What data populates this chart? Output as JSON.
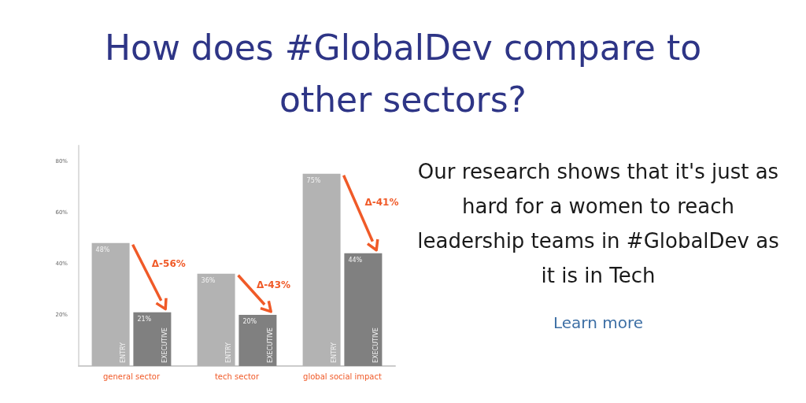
{
  "chart_data": {
    "type": "bar",
    "title": "How does #GlobalDev compare to other sectors?",
    "categories": [
      "general sector",
      "tech sector",
      "global social impact"
    ],
    "series": [
      {
        "name": "ENTRY",
        "color": "#b3b3b3",
        "values": [
          48,
          36,
          75
        ],
        "value_labels": [
          "48%",
          "36%",
          "75%"
        ]
      },
      {
        "name": "EXECUTIVE",
        "color": "#808080",
        "values": [
          21,
          20,
          44
        ],
        "value_labels": [
          "21%",
          "20%",
          "44%"
        ]
      }
    ],
    "ylim": [
      0,
      86
    ],
    "yticks": [
      {
        "value": 20,
        "label": "20%"
      },
      {
        "value": 40,
        "label": "40%"
      },
      {
        "value": 60,
        "label": "60%"
      },
      {
        "value": 80,
        "label": "80%"
      }
    ],
    "grid": false,
    "legend": false,
    "annotations": [
      {
        "text": "Δ-56%",
        "x": "general sector",
        "y": 40
      },
      {
        "text": "Δ-43%",
        "x": "tech sector",
        "y": 31.5
      },
      {
        "text": "Δ-41%",
        "x": "global social impact",
        "y": 64
      },
      "Our research shows that it's just as hard for a women to reach leadership teams in #GlobalDev as it is in Tech",
      "Learn more"
    ]
  }
}
